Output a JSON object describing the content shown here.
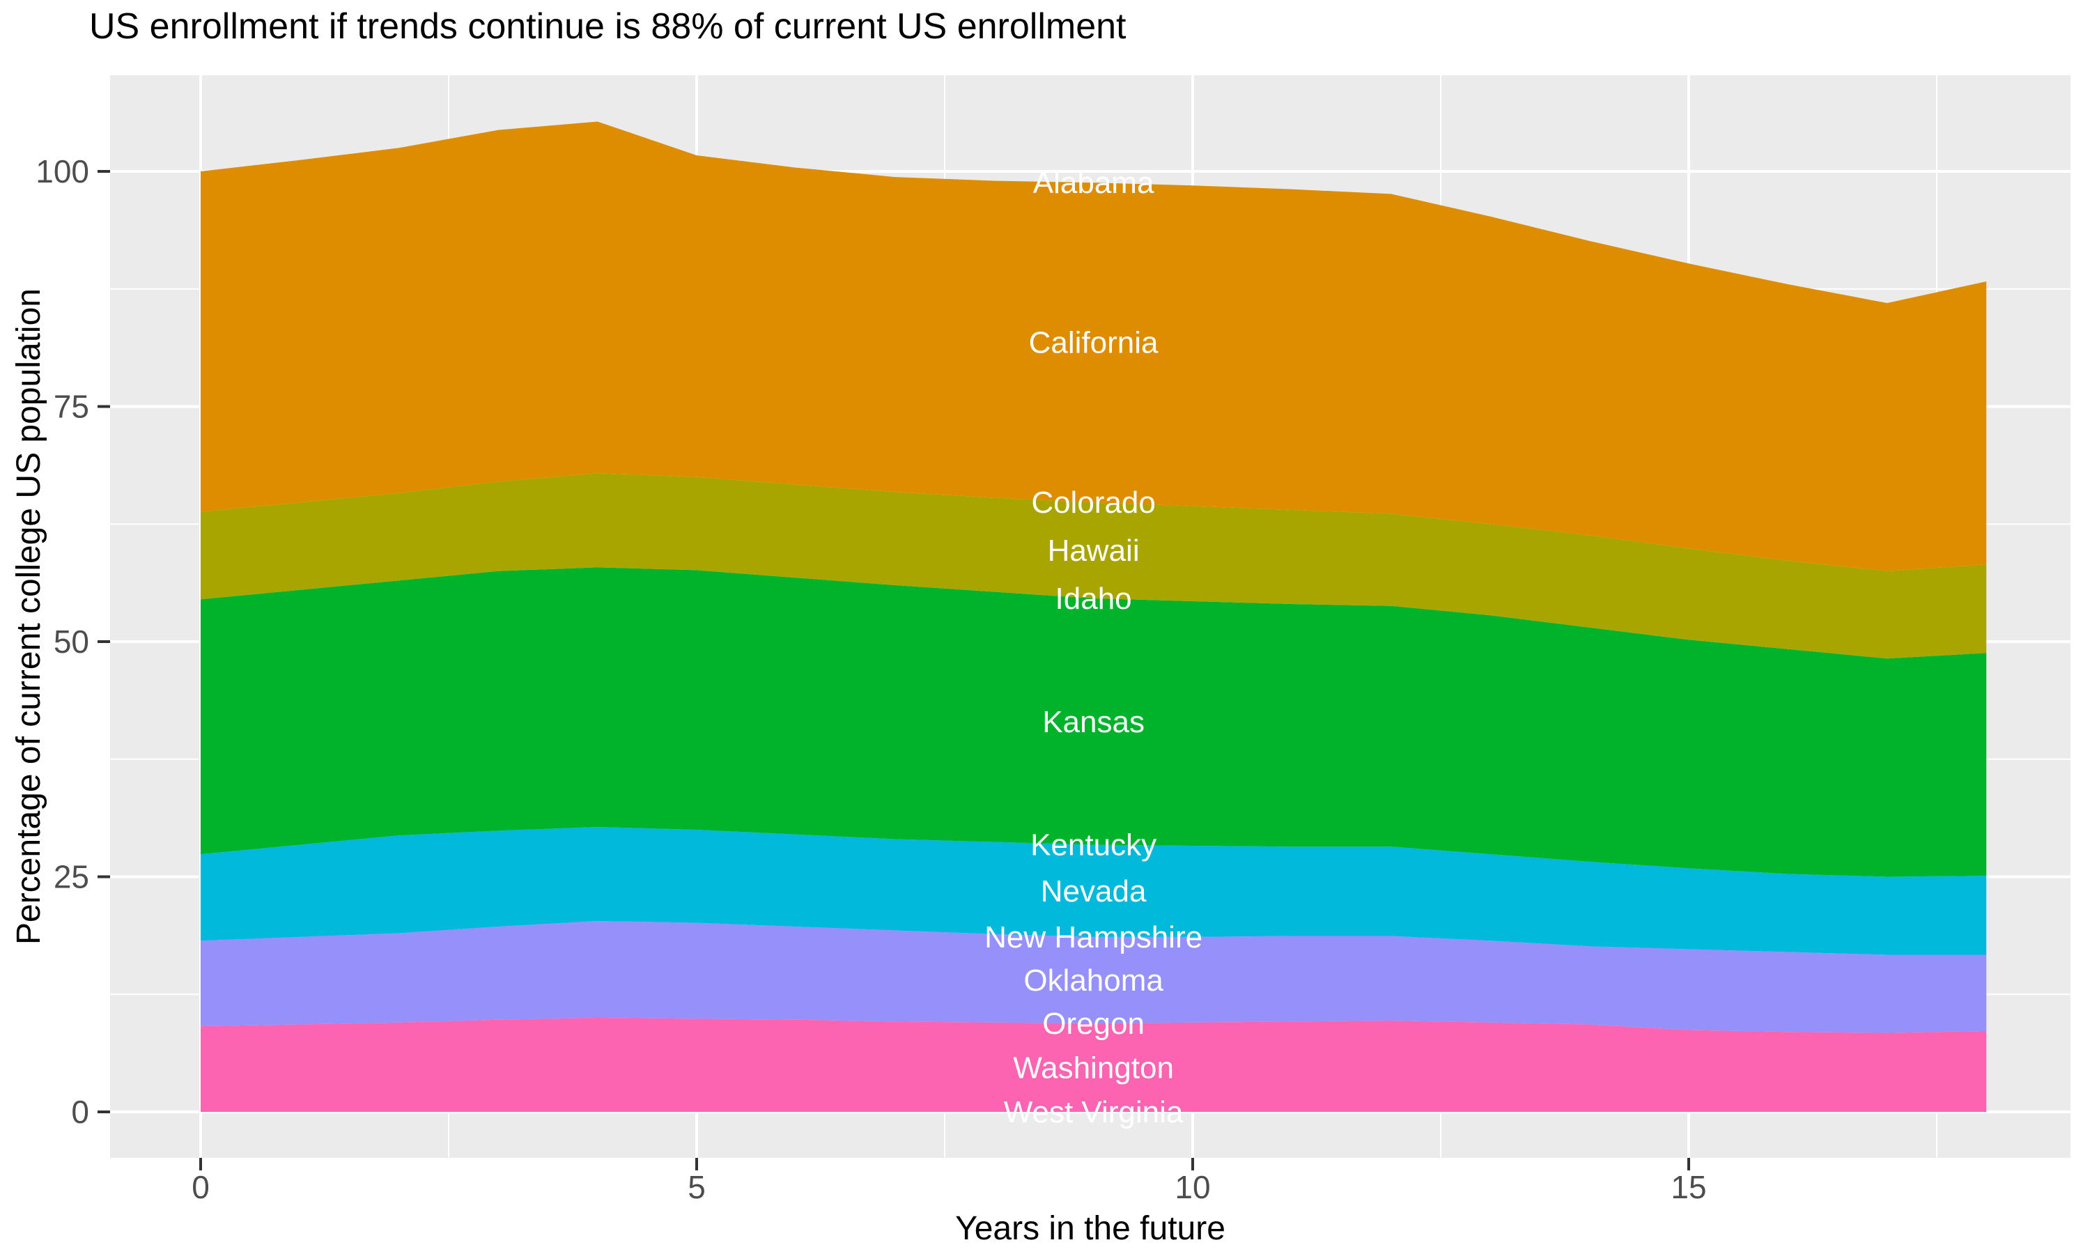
{
  "chart_data": {
    "type": "area",
    "title": "US enrollment if trends continue is 88% of current US enrollment",
    "xlabel": "Years in the future",
    "ylabel": "Percentage of current college US population",
    "stacked": true,
    "legend": "none",
    "grid": "on",
    "panel_background": "#EBEBEB",
    "grid_color": "#FFFFFF",
    "axis_text_color": "#4D4D4D",
    "tick_mark_color": "#333333",
    "band_label_color": "#FFFFFF",
    "title_color": "#000000",
    "x": [
      0,
      1,
      2,
      3,
      4,
      5,
      6,
      7,
      8,
      9,
      10,
      11,
      12,
      13,
      14,
      15,
      16,
      17,
      18
    ],
    "x_range": [
      0,
      18
    ],
    "y_range": [
      0,
      105.3
    ],
    "x_ticks": [
      0,
      5,
      10,
      15
    ],
    "x_minor_ticks": [
      2.5,
      7.5,
      12.5,
      17.5
    ],
    "y_ticks": [
      0,
      25,
      50,
      75,
      100
    ],
    "y_minor_ticks": [
      12.5,
      37.5,
      62.5,
      87.5
    ],
    "label_x": 9,
    "series": [
      {
        "name": "West Virginia",
        "color": "#FF65AC",
        "values": [
          0,
          0,
          0,
          0,
          0,
          0,
          0,
          0,
          0,
          0,
          0,
          0,
          0,
          0,
          0,
          0,
          0,
          0,
          0
        ]
      },
      {
        "name": "Washington",
        "color": "#FC63B0",
        "values": [
          9.1,
          9.3,
          9.5,
          9.8,
          10.0,
          9.9,
          9.8,
          9.6,
          9.5,
          9.4,
          9.5,
          9.6,
          9.7,
          9.5,
          9.3,
          8.7,
          8.5,
          8.4,
          8.6
        ]
      },
      {
        "name": "Oregon",
        "color": "#D575FE",
        "values": [
          0,
          0,
          0,
          0,
          0,
          0,
          0,
          0,
          0,
          0,
          0,
          0,
          0,
          0,
          0,
          0,
          0,
          0,
          0
        ]
      },
      {
        "name": "Oklahoma",
        "color": "#9590FA",
        "values": [
          9.1,
          9.3,
          9.5,
          9.9,
          10.3,
          10.2,
          9.9,
          9.7,
          9.4,
          9.2,
          9.1,
          9.1,
          9.0,
          8.7,
          8.3,
          8.6,
          8.5,
          8.3,
          8.1
        ]
      },
      {
        "name": "New Hampshire",
        "color": "#00B4EF",
        "values": [
          0,
          0,
          0,
          0,
          0,
          0,
          0,
          0,
          0,
          0,
          0,
          0,
          0,
          0,
          0,
          0,
          0,
          0,
          0
        ]
      },
      {
        "name": "Nevada",
        "color": "#00B9DB",
        "values": [
          9.2,
          9.8,
          10.4,
          10.2,
          10.0,
          9.9,
          9.8,
          9.7,
          9.8,
          9.8,
          9.7,
          9.5,
          9.5,
          9.2,
          9.0,
          8.6,
          8.3,
          8.3,
          8.4
        ]
      },
      {
        "name": "Kentucky",
        "color": "#00C08B",
        "values": [
          0,
          0,
          0,
          0,
          0,
          0,
          0,
          0,
          0,
          0,
          0,
          0,
          0,
          0,
          0,
          0,
          0,
          0,
          0
        ]
      },
      {
        "name": "Kansas",
        "color": "#00B32B",
        "values": [
          27.1,
          27.1,
          27.1,
          27.6,
          27.6,
          27.6,
          27.3,
          27.0,
          26.6,
          26.2,
          26.0,
          25.8,
          25.6,
          25.4,
          24.9,
          24.3,
          23.9,
          23.2,
          23.7
        ]
      },
      {
        "name": "Idaho",
        "color": "#24B700",
        "values": [
          0,
          0,
          0,
          0,
          0,
          0,
          0,
          0,
          0,
          0,
          0,
          0,
          0,
          0,
          0,
          0,
          0,
          0,
          0
        ]
      },
      {
        "name": "Hawaii",
        "color": "#A8A400",
        "values": [
          9.3,
          9.3,
          9.3,
          9.5,
          10.0,
          9.9,
          9.9,
          9.9,
          10.0,
          10.2,
          10.1,
          10.0,
          9.8,
          9.7,
          9.8,
          9.7,
          9.4,
          9.3,
          9.4
        ]
      },
      {
        "name": "Colorado",
        "color": "#BE9C00",
        "values": [
          0,
          0,
          0,
          0,
          0,
          0,
          0,
          0,
          0,
          0,
          0,
          0,
          0,
          0,
          0,
          0,
          0,
          0,
          0
        ]
      },
      {
        "name": "California",
        "color": "#DE8C00",
        "values": [
          36.2,
          36.4,
          36.7,
          37.4,
          37.4,
          34.2,
          33.7,
          33.5,
          33.7,
          34.0,
          34.1,
          34.1,
          34.0,
          32.7,
          31.3,
          30.3,
          29.4,
          28.5,
          30.1
        ]
      },
      {
        "name": "Alabama",
        "color": "#F8766D",
        "values": [
          0,
          0,
          0,
          0,
          0,
          0,
          0,
          0,
          0,
          0,
          0,
          0,
          0,
          0,
          0,
          0,
          0,
          0,
          0
        ]
      }
    ]
  }
}
